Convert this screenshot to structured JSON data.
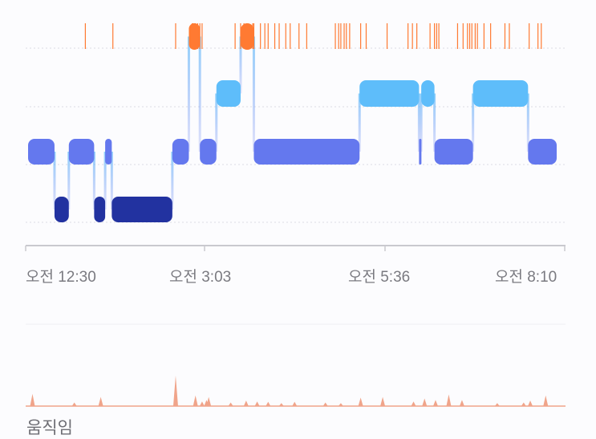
{
  "hypnogram": {
    "x_ticks": [
      "오전 12:30",
      "오전 3:03",
      "오전 5:36",
      "오전 8:10"
    ],
    "stages": [
      "awake",
      "rem",
      "light",
      "deep"
    ],
    "colors": {
      "awake": "#ff7a32",
      "rem": "#5ebdfa",
      "light": "#6478ee",
      "deep": "#2232a0",
      "grid": "#dcdce4",
      "axis": "#c9c9cf"
    },
    "segments": [
      {
        "stage": "light",
        "start": "00:30",
        "end": "00:54"
      },
      {
        "stage": "deep",
        "start": "00:54",
        "end": "01:07"
      },
      {
        "stage": "light",
        "start": "01:07",
        "end": "01:30"
      },
      {
        "stage": "deep",
        "start": "01:30",
        "end": "01:40"
      },
      {
        "stage": "light",
        "start": "01:40",
        "end": "01:46"
      },
      {
        "stage": "deep",
        "start": "01:46",
        "end": "02:41"
      },
      {
        "stage": "light",
        "start": "02:41",
        "end": "02:56"
      },
      {
        "stage": "awake",
        "start": "02:56",
        "end": "03:06"
      },
      {
        "stage": "light",
        "start": "03:06",
        "end": "03:21"
      },
      {
        "stage": "rem",
        "start": "03:21",
        "end": "03:43"
      },
      {
        "stage": "awake",
        "start": "03:43",
        "end": "03:55"
      },
      {
        "stage": "light",
        "start": "03:55",
        "end": "05:31"
      },
      {
        "stage": "rem",
        "start": "05:31",
        "end": "06:25"
      },
      {
        "stage": "light",
        "start": "06:25",
        "end": "06:27"
      },
      {
        "stage": "rem",
        "start": "06:27",
        "end": "06:39"
      },
      {
        "stage": "light",
        "start": "06:39",
        "end": "07:14"
      },
      {
        "stage": "rem",
        "start": "07:14",
        "end": "08:04"
      },
      {
        "stage": "light",
        "start": "08:04",
        "end": "08:30"
      }
    ],
    "wake_marks": [
      "01:22",
      "01:47",
      "02:44",
      "02:59",
      "03:00",
      "03:02",
      "03:04",
      "03:06",
      "03:08",
      "03:38",
      "03:43",
      "03:46",
      "03:54",
      "03:55",
      "04:01",
      "04:05",
      "04:08",
      "04:14",
      "04:18",
      "04:24",
      "04:28",
      "04:36",
      "04:43",
      "05:09",
      "05:12",
      "05:14",
      "05:17",
      "05:19",
      "05:22",
      "05:32",
      "05:37",
      "05:56",
      "06:15",
      "06:19",
      "06:23",
      "06:35",
      "06:39",
      "06:41",
      "06:43",
      "07:00",
      "07:05",
      "07:09",
      "07:11",
      "07:13",
      "07:16",
      "07:18",
      "07:24",
      "07:30",
      "07:43",
      "07:47",
      "08:05",
      "08:13",
      "08:16"
    ]
  },
  "movement": {
    "title": "움직임",
    "color": "#f0a48a",
    "spikes": [
      {
        "t": "00:34",
        "v": 0.4
      },
      {
        "t": "01:12",
        "v": 0.12
      },
      {
        "t": "01:36",
        "v": 0.3
      },
      {
        "t": "02:44",
        "v": 1.0
      },
      {
        "t": "03:02",
        "v": 0.35
      },
      {
        "t": "03:08",
        "v": 0.15
      },
      {
        "t": "03:12",
        "v": 0.2
      },
      {
        "t": "03:14",
        "v": 0.3
      },
      {
        "t": "03:34",
        "v": 0.12
      },
      {
        "t": "03:48",
        "v": 0.18
      },
      {
        "t": "03:58",
        "v": 0.15
      },
      {
        "t": "04:08",
        "v": 0.14
      },
      {
        "t": "04:20",
        "v": 0.1
      },
      {
        "t": "04:32",
        "v": 0.14
      },
      {
        "t": "05:00",
        "v": 0.12
      },
      {
        "t": "05:14",
        "v": 0.1
      },
      {
        "t": "05:32",
        "v": 0.28
      },
      {
        "t": "05:52",
        "v": 0.3
      },
      {
        "t": "06:20",
        "v": 0.15
      },
      {
        "t": "06:30",
        "v": 0.25
      },
      {
        "t": "06:40",
        "v": 0.2
      },
      {
        "t": "06:52",
        "v": 0.38
      },
      {
        "t": "07:04",
        "v": 0.2
      },
      {
        "t": "07:36",
        "v": 0.1
      },
      {
        "t": "08:00",
        "v": 0.12
      },
      {
        "t": "08:06",
        "v": 0.18
      },
      {
        "t": "08:20",
        "v": 0.35
      }
    ]
  }
}
